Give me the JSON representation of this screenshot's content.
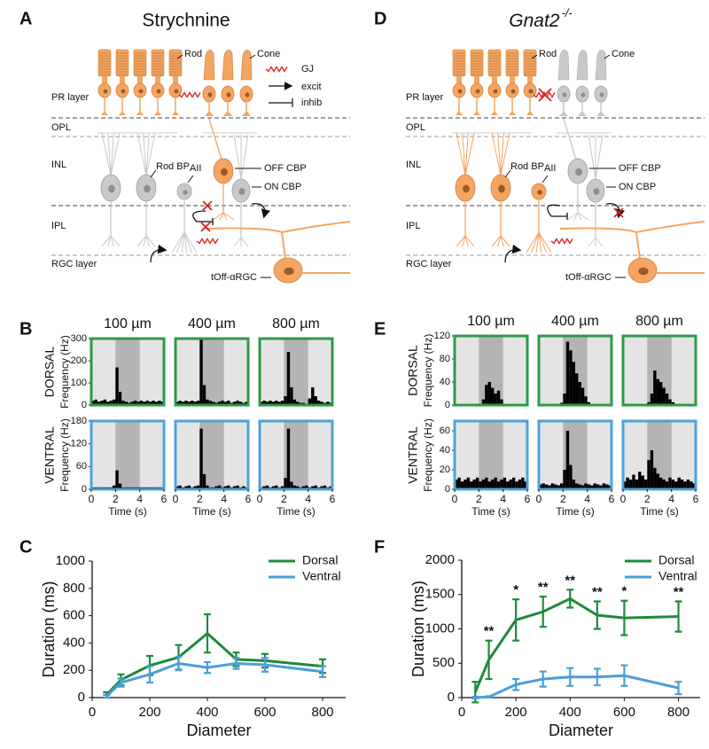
{
  "diagrams": [
    {
      "letter": "A",
      "title": "Strychnine",
      "layers": [
        "PR layer",
        "OPL",
        "INL",
        "IPL",
        "RGC layer"
      ],
      "labels": {
        "rod": "Rod",
        "cone": "Cone",
        "rod_bp": "Rod BP",
        "aii": "AII",
        "off_cbp": "OFF CBP",
        "on_cbp": "ON CBP",
        "rgc": "tOff-αRGC"
      },
      "legend": [
        "GJ",
        "excit",
        "inhib"
      ]
    },
    {
      "letter": "D",
      "title": "Gnat2",
      "title_superscript": "-/-",
      "layers": [
        "PR layer",
        "OPL",
        "INL",
        "IPL",
        "RGC layer"
      ],
      "labels": {
        "rod": "Rod",
        "cone": "Cone",
        "rod_bp": "Rod BP",
        "aii": "AII",
        "off_cbp": "OFF CBP",
        "on_cbp": "ON CBP",
        "rgc": "tOff-αRGC"
      }
    }
  ],
  "chart_data": [
    {
      "type": "line",
      "letter": "C",
      "xlabel": "Diameter",
      "ylabel": "Duration (ms)",
      "x": [
        50,
        100,
        200,
        300,
        400,
        500,
        600,
        800
      ],
      "xlim": [
        0,
        880
      ],
      "xticks": [
        0,
        200,
        400,
        600,
        800
      ],
      "ylim": [
        0,
        1000
      ],
      "yticks": [
        0,
        200,
        400,
        600,
        800,
        1000
      ],
      "legend": "top-right",
      "series": [
        {
          "name": "Dorsal",
          "color": "#1f8a3c",
          "values": [
            20,
            130,
            235,
            295,
            470,
            280,
            270,
            230
          ],
          "errors": [
            20,
            40,
            70,
            90,
            140,
            50,
            50,
            50
          ]
        },
        {
          "name": "Ventral",
          "color": "#4a9ed6",
          "values": [
            10,
            110,
            170,
            250,
            220,
            250,
            240,
            190
          ],
          "errors": [
            10,
            30,
            60,
            50,
            40,
            40,
            50,
            40
          ]
        }
      ]
    },
    {
      "type": "line",
      "letter": "F",
      "xlabel": "Diameter",
      "ylabel": "Duration (ms)",
      "x": [
        50,
        100,
        200,
        300,
        400,
        500,
        600,
        800
      ],
      "xlim": [
        0,
        880
      ],
      "xticks": [
        0,
        200,
        400,
        600,
        800
      ],
      "ylim": [
        0,
        2000
      ],
      "yticks": [
        0,
        500,
        1000,
        1500,
        2000
      ],
      "legend": "top-right",
      "annotations": [
        null,
        "**",
        "*",
        "**",
        "**",
        "**",
        "*",
        "**"
      ],
      "series": [
        {
          "name": "Dorsal",
          "color": "#1f8a3c",
          "values": [
            80,
            550,
            1130,
            1250,
            1440,
            1200,
            1160,
            1180
          ],
          "errors": [
            150,
            280,
            300,
            220,
            130,
            200,
            250,
            220
          ]
        },
        {
          "name": "Ventral",
          "color": "#4a9ed6",
          "values": [
            0,
            10,
            190,
            270,
            300,
            300,
            320,
            140
          ],
          "errors": [
            10,
            10,
            80,
            110,
            130,
            120,
            150,
            90
          ]
        }
      ]
    },
    {
      "type": "histogram",
      "letter": "B",
      "row_label": "DORSAL",
      "ylabel": "Frequency (Hz)",
      "xlim": [
        0,
        6
      ],
      "ylim": [
        0,
        300
      ],
      "yticks": [
        0,
        100,
        200,
        300
      ],
      "stimulus": [
        2,
        4
      ],
      "frame_color": "#2b9a47",
      "bar_color": "#000000",
      "panels": [
        {
          "title": "100 µm",
          "bins": [
            0,
            0.25,
            0.5,
            0.75,
            1,
            1.25,
            1.5,
            1.75,
            2,
            2.25,
            2.5,
            2.75,
            3,
            3.25,
            3.5,
            3.75,
            4,
            4.25,
            4.5,
            4.75,
            5,
            5.25,
            5.5,
            5.75,
            6
          ],
          "values": [
            20,
            25,
            15,
            20,
            25,
            15,
            20,
            25,
            170,
            60,
            20,
            15,
            10,
            15,
            20,
            15,
            20,
            15,
            20,
            15,
            20,
            15,
            20,
            15
          ]
        },
        {
          "title": "400 µm",
          "bins": [
            0,
            0.25,
            0.5,
            0.75,
            1,
            1.25,
            1.5,
            1.75,
            2,
            2.25,
            2.5,
            2.75,
            3,
            3.25,
            3.5,
            3.75,
            4,
            4.25,
            4.5,
            4.75,
            5,
            5.25,
            5.5,
            5.75,
            6
          ],
          "values": [
            15,
            20,
            15,
            20,
            15,
            20,
            15,
            20,
            300,
            90,
            25,
            20,
            15,
            10,
            15,
            20,
            15,
            20,
            10,
            15,
            20,
            15,
            10,
            15
          ]
        },
        {
          "title": "800 µm",
          "bins": [
            0,
            0.25,
            0.5,
            0.75,
            1,
            1.25,
            1.5,
            1.75,
            2,
            2.25,
            2.5,
            2.75,
            3,
            3.25,
            3.5,
            3.75,
            4,
            4.25,
            4.5,
            4.75,
            5,
            5.25,
            5.5,
            5.75,
            6
          ],
          "values": [
            15,
            20,
            15,
            20,
            15,
            20,
            15,
            20,
            40,
            240,
            80,
            25,
            15,
            10,
            10,
            5,
            30,
            80,
            40,
            20,
            15,
            10,
            15,
            10
          ]
        }
      ]
    },
    {
      "type": "histogram",
      "row_label": "VENTRAL",
      "ylabel": "Frequency (Hz)",
      "xlabel": "Time (s)",
      "xlim": [
        0,
        6
      ],
      "xticks": [
        0,
        2,
        4,
        6
      ],
      "ylim": [
        0,
        180
      ],
      "yticks": [
        0,
        60,
        120,
        180
      ],
      "stimulus": [
        2,
        4
      ],
      "frame_color": "#4da3d8",
      "bar_color": "#000000",
      "panels": [
        {
          "bins": [
            0,
            0.25,
            0.5,
            0.75,
            1,
            1.25,
            1.5,
            1.75,
            2,
            2.25,
            2.5,
            2.75,
            3,
            3.25,
            3.5,
            3.75,
            4,
            4.25,
            4.5,
            4.75,
            5,
            5.25,
            5.5,
            5.75,
            6
          ],
          "values": [
            5,
            5,
            5,
            5,
            5,
            5,
            5,
            10,
            50,
            15,
            5,
            5,
            5,
            5,
            5,
            5,
            5,
            5,
            5,
            5,
            5,
            5,
            5,
            5
          ]
        },
        {
          "bins": [
            0,
            0.25,
            0.5,
            0.75,
            1,
            1.25,
            1.5,
            1.75,
            2,
            2.25,
            2.5,
            2.75,
            3,
            3.25,
            3.5,
            3.75,
            4,
            4.25,
            4.5,
            4.75,
            5,
            5.25,
            5.5,
            5.75,
            6
          ],
          "values": [
            8,
            10,
            5,
            8,
            10,
            5,
            8,
            10,
            160,
            40,
            10,
            5,
            5,
            8,
            10,
            5,
            8,
            10,
            5,
            8,
            10,
            5,
            8,
            5
          ]
        },
        {
          "bins": [
            0,
            0.25,
            0.5,
            0.75,
            1,
            1.25,
            1.5,
            1.75,
            2,
            2.25,
            2.5,
            2.75,
            3,
            3.25,
            3.5,
            3.75,
            4,
            4.25,
            4.5,
            4.75,
            5,
            5.25,
            5.5,
            5.75,
            6
          ],
          "values": [
            5,
            8,
            10,
            5,
            8,
            10,
            5,
            8,
            30,
            160,
            20,
            10,
            8,
            5,
            8,
            10,
            5,
            8,
            10,
            5,
            8,
            10,
            5,
            8
          ]
        }
      ]
    },
    {
      "type": "histogram",
      "letter": "E",
      "row_label": "DORSAL",
      "ylabel": "Frequency (Hz)",
      "xlim": [
        0,
        6
      ],
      "ylim": [
        0,
        120
      ],
      "yticks": [
        0,
        40,
        80,
        120
      ],
      "stimulus": [
        2,
        4
      ],
      "frame_color": "#2b9a47",
      "bar_color": "#000000",
      "panels": [
        {
          "title": "100 µm",
          "bins": [
            0,
            0.25,
            0.5,
            0.75,
            1,
            1.25,
            1.5,
            1.75,
            2,
            2.25,
            2.5,
            2.75,
            3,
            3.25,
            3.5,
            3.75,
            4,
            4.25,
            4.5,
            4.75,
            5,
            5.25,
            5.5,
            5.75,
            6
          ],
          "values": [
            0,
            2,
            0,
            2,
            0,
            0,
            2,
            0,
            0,
            10,
            35,
            40,
            30,
            20,
            25,
            10,
            0,
            2,
            0,
            0,
            2,
            0,
            0,
            0
          ]
        },
        {
          "title": "400 µm",
          "bins": [
            0,
            0.25,
            0.5,
            0.75,
            1,
            1.25,
            1.5,
            1.75,
            2,
            2.25,
            2.5,
            2.75,
            3,
            3.25,
            3.5,
            3.75,
            4,
            4.25,
            4.5,
            4.75,
            5,
            5.25,
            5.5,
            5.75,
            6
          ],
          "values": [
            0,
            2,
            0,
            2,
            0,
            2,
            0,
            4,
            20,
            110,
            95,
            75,
            55,
            40,
            30,
            15,
            5,
            2,
            0,
            2,
            0,
            0,
            2,
            0
          ]
        },
        {
          "title": "800 µm",
          "bins": [
            0,
            0.25,
            0.5,
            0.75,
            1,
            1.25,
            1.5,
            1.75,
            2,
            2.25,
            2.5,
            2.75,
            3,
            3.25,
            3.5,
            3.75,
            4,
            4.25,
            4.5,
            4.75,
            5,
            5.25,
            5.5,
            5.75,
            6
          ],
          "values": [
            0,
            2,
            0,
            2,
            0,
            2,
            0,
            2,
            5,
            20,
            60,
            45,
            40,
            30,
            20,
            10,
            5,
            2,
            0,
            2,
            0,
            2,
            0,
            0
          ]
        }
      ]
    },
    {
      "type": "histogram",
      "row_label": "VENTRAL",
      "ylabel": "Frequency (Hz)",
      "xlabel": "Time (s)",
      "xlim": [
        0,
        6
      ],
      "xticks": [
        0,
        2,
        4,
        6
      ],
      "ylim": [
        0,
        70
      ],
      "yticks": [
        0,
        20,
        40,
        60
      ],
      "stimulus": [
        2,
        4
      ],
      "frame_color": "#4da3d8",
      "bar_color": "#000000",
      "panels": [
        {
          "bins": [
            0,
            0.25,
            0.5,
            0.75,
            1,
            1.25,
            1.5,
            1.75,
            2,
            2.25,
            2.5,
            2.75,
            3,
            3.25,
            3.5,
            3.75,
            4,
            4.25,
            4.5,
            4.75,
            5,
            5.25,
            5.5,
            5.75,
            6
          ],
          "values": [
            10,
            12,
            8,
            10,
            12,
            8,
            10,
            12,
            8,
            10,
            12,
            8,
            10,
            12,
            8,
            10,
            12,
            8,
            10,
            12,
            8,
            10,
            12,
            8
          ]
        },
        {
          "bins": [
            0,
            0.25,
            0.5,
            0.75,
            1,
            1.25,
            1.5,
            1.75,
            2,
            2.25,
            2.5,
            2.75,
            3,
            3.25,
            3.5,
            3.75,
            4,
            4.25,
            4.5,
            4.75,
            5,
            5.25,
            5.5,
            5.75,
            6
          ],
          "values": [
            5,
            6,
            5,
            4,
            6,
            5,
            4,
            6,
            20,
            60,
            25,
            10,
            6,
            5,
            4,
            6,
            5,
            4,
            6,
            5,
            4,
            6,
            5,
            4
          ]
        },
        {
          "bins": [
            0,
            0.25,
            0.5,
            0.75,
            1,
            1.25,
            1.5,
            1.75,
            2,
            2.25,
            2.5,
            2.75,
            3,
            3.25,
            3.5,
            3.75,
            4,
            4.25,
            4.5,
            4.75,
            5,
            5.25,
            5.5,
            5.75,
            6
          ],
          "values": [
            8,
            12,
            10,
            15,
            10,
            18,
            14,
            10,
            30,
            40,
            22,
            16,
            12,
            10,
            8,
            12,
            10,
            8,
            12,
            10,
            8,
            10,
            8,
            6
          ]
        }
      ]
    }
  ]
}
